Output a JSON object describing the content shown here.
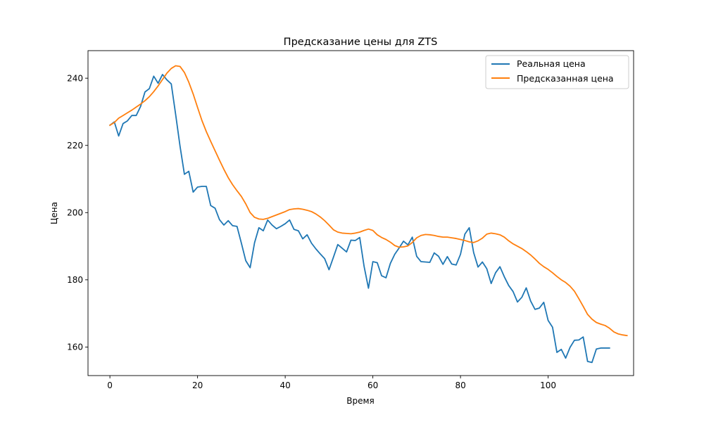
{
  "chart_data": {
    "type": "line",
    "title": "Предсказание цены для ZTS",
    "xlabel": "Время",
    "ylabel": "Цена",
    "xlim": [
      -5,
      119.5
    ],
    "ylim": [
      151.5,
      248.2
    ],
    "xticks": [
      0,
      20,
      40,
      60,
      80,
      100
    ],
    "yticks": [
      160,
      180,
      200,
      220,
      240
    ],
    "legend_position": "top-right",
    "series": [
      {
        "name": "Реальная цена",
        "color": "#1f77b4",
        "values": [
          226.0,
          227.0,
          222.8,
          226.5,
          227.3,
          228.9,
          228.9,
          231.6,
          235.9,
          236.9,
          240.6,
          238.5,
          241.1,
          239.5,
          238.3,
          229.2,
          219.8,
          211.4,
          212.3,
          206.1,
          207.6,
          207.8,
          207.8,
          202.1,
          201.3,
          197.9,
          196.3,
          197.6,
          196.1,
          195.9,
          190.9,
          185.7,
          183.6,
          191.0,
          195.5,
          194.6,
          197.8,
          196.3,
          195.2,
          195.9,
          196.7,
          197.8,
          195.0,
          194.6,
          192.2,
          193.4,
          190.9,
          189.2,
          187.7,
          186.3,
          183.0,
          186.7,
          190.5,
          189.4,
          188.3,
          191.8,
          191.7,
          192.6,
          184.0,
          177.5,
          185.4,
          185.1,
          181.2,
          180.6,
          184.9,
          187.6,
          189.5,
          191.5,
          190.4,
          192.7,
          187.0,
          185.4,
          185.3,
          185.2,
          188.0,
          187.0,
          184.6,
          186.9,
          184.7,
          184.4,
          187.6,
          193.6,
          195.5,
          188.1,
          183.8,
          185.3,
          183.3,
          178.9,
          182.1,
          183.9,
          180.9,
          178.3,
          176.5,
          173.4,
          174.8,
          177.6,
          173.7,
          171.2,
          171.6,
          173.3,
          167.9,
          165.9,
          158.4,
          159.3,
          156.7,
          159.9,
          162.0,
          162.1,
          163.0,
          155.7,
          155.4,
          159.4,
          159.7,
          159.7,
          159.7
        ]
      },
      {
        "name": "Предсказанная цена",
        "color": "#ff7f0e",
        "values": [
          226.0,
          226.8,
          228.1,
          228.9,
          229.7,
          230.5,
          231.4,
          232.3,
          233.3,
          234.5,
          236.0,
          237.7,
          239.6,
          241.5,
          242.9,
          243.7,
          243.5,
          241.7,
          238.8,
          235.3,
          231.3,
          227.4,
          224.1,
          221.2,
          218.4,
          215.6,
          212.9,
          210.4,
          208.3,
          206.5,
          204.8,
          202.6,
          200.0,
          198.6,
          198.1,
          198.0,
          198.3,
          198.8,
          199.3,
          199.8,
          200.3,
          200.9,
          201.1,
          201.2,
          201.0,
          200.7,
          200.3,
          199.6,
          198.7,
          197.6,
          196.3,
          194.9,
          194.2,
          193.9,
          193.8,
          193.7,
          193.9,
          194.2,
          194.7,
          195.1,
          194.7,
          193.4,
          192.6,
          192.0,
          191.2,
          190.2,
          189.7,
          189.8,
          190.1,
          191.1,
          192.5,
          193.2,
          193.5,
          193.4,
          193.2,
          192.9,
          192.7,
          192.7,
          192.5,
          192.3,
          192.0,
          191.7,
          191.3,
          191.1,
          191.6,
          192.4,
          193.6,
          193.9,
          193.7,
          193.4,
          192.7,
          191.6,
          190.7,
          190.0,
          189.3,
          188.4,
          187.4,
          186.2,
          184.9,
          183.9,
          183.1,
          182.1,
          181.0,
          180.0,
          179.2,
          178.1,
          176.6,
          174.4,
          172.1,
          169.7,
          168.3,
          167.3,
          166.8,
          166.4,
          165.6,
          164.5,
          163.9,
          163.6,
          163.4
        ]
      }
    ]
  }
}
